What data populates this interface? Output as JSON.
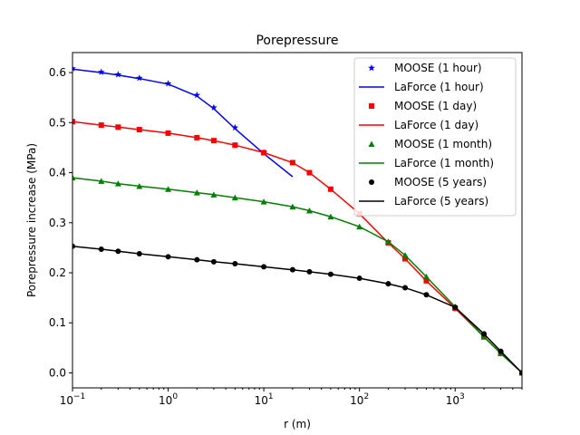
{
  "chart_data": {
    "type": "line",
    "title": "Porepressure",
    "xlabel": "r (m)",
    "ylabel": "Porepressure increase (MPa)",
    "xscale": "log",
    "xlim": [
      0.1,
      5000
    ],
    "ylim": [
      -0.03,
      0.64
    ],
    "yticks": [
      "0.0",
      "0.1",
      "0.2",
      "0.3",
      "0.4",
      "0.5",
      "0.6"
    ],
    "xticks": [
      {
        "base": "10",
        "exp": "−1"
      },
      {
        "base": "10",
        "exp": "0"
      },
      {
        "base": "10",
        "exp": "1"
      },
      {
        "base": "10",
        "exp": "2"
      },
      {
        "base": "10",
        "exp": "3"
      }
    ],
    "legend_position": "top-right",
    "x": [
      0.1,
      0.2,
      0.3,
      0.5,
      1,
      2,
      3,
      5,
      10,
      20,
      30,
      50,
      100,
      200,
      300,
      500,
      1000,
      2000,
      3000,
      5000
    ],
    "series": [
      {
        "name": "MOOSE (1 hour)",
        "kind": "markers",
        "marker": "star",
        "color": "#0000ff",
        "values": [
          0.608,
          0.601,
          0.596,
          0.589,
          0.578,
          0.555,
          0.53,
          0.49,
          0.44,
          null,
          null,
          null,
          null,
          null,
          null,
          null,
          null,
          null,
          null,
          null
        ]
      },
      {
        "name": "LaForce (1 hour)",
        "kind": "line",
        "color": "#0000ff",
        "values": [
          0.607,
          0.6,
          0.595,
          0.588,
          0.577,
          0.553,
          0.528,
          0.488,
          0.438,
          0.392,
          null,
          null,
          null,
          null,
          null,
          null,
          null,
          null,
          null,
          null
        ]
      },
      {
        "name": "MOOSE (1 day)",
        "kind": "markers",
        "marker": "square",
        "color": "#ff0000",
        "values": [
          0.502,
          0.495,
          0.491,
          0.486,
          0.479,
          0.47,
          0.464,
          0.455,
          0.44,
          0.42,
          0.4,
          0.367,
          0.318,
          0.26,
          0.228,
          0.184,
          0.129,
          0.072,
          0.039,
          0.0
        ]
      },
      {
        "name": "LaForce (1 day)",
        "kind": "line",
        "color": "#ff0000",
        "values": [
          0.502,
          0.495,
          0.491,
          0.486,
          0.479,
          0.47,
          0.464,
          0.455,
          0.44,
          0.42,
          0.4,
          0.367,
          0.318,
          0.26,
          0.228,
          0.184,
          0.129,
          0.072,
          0.039,
          0.0
        ]
      },
      {
        "name": "MOOSE (1 month)",
        "kind": "markers",
        "marker": "triangle",
        "color": "#008000",
        "values": [
          0.39,
          0.383,
          0.378,
          0.373,
          0.367,
          0.36,
          0.356,
          0.35,
          0.342,
          0.332,
          0.324,
          0.312,
          0.292,
          0.262,
          0.235,
          0.192,
          0.132,
          0.072,
          0.039,
          0.0
        ]
      },
      {
        "name": "LaForce (1 month)",
        "kind": "line",
        "color": "#008000",
        "values": [
          0.39,
          0.383,
          0.378,
          0.373,
          0.367,
          0.36,
          0.356,
          0.35,
          0.342,
          0.332,
          0.324,
          0.312,
          0.292,
          0.262,
          0.235,
          0.192,
          0.132,
          0.072,
          0.039,
          0.0
        ]
      },
      {
        "name": "MOOSE (5 years)",
        "kind": "markers",
        "marker": "circle",
        "color": "#000000",
        "values": [
          0.253,
          0.247,
          0.243,
          0.238,
          0.232,
          0.226,
          0.222,
          0.218,
          0.212,
          0.206,
          0.202,
          0.197,
          0.189,
          0.178,
          0.17,
          0.156,
          0.131,
          0.078,
          0.043,
          0.0
        ]
      },
      {
        "name": "LaForce (5 years)",
        "kind": "line",
        "color": "#000000",
        "values": [
          0.253,
          0.247,
          0.243,
          0.238,
          0.232,
          0.226,
          0.222,
          0.218,
          0.212,
          0.206,
          0.202,
          0.197,
          0.189,
          0.178,
          0.17,
          0.156,
          0.131,
          0.078,
          0.043,
          0.0
        ]
      }
    ]
  }
}
